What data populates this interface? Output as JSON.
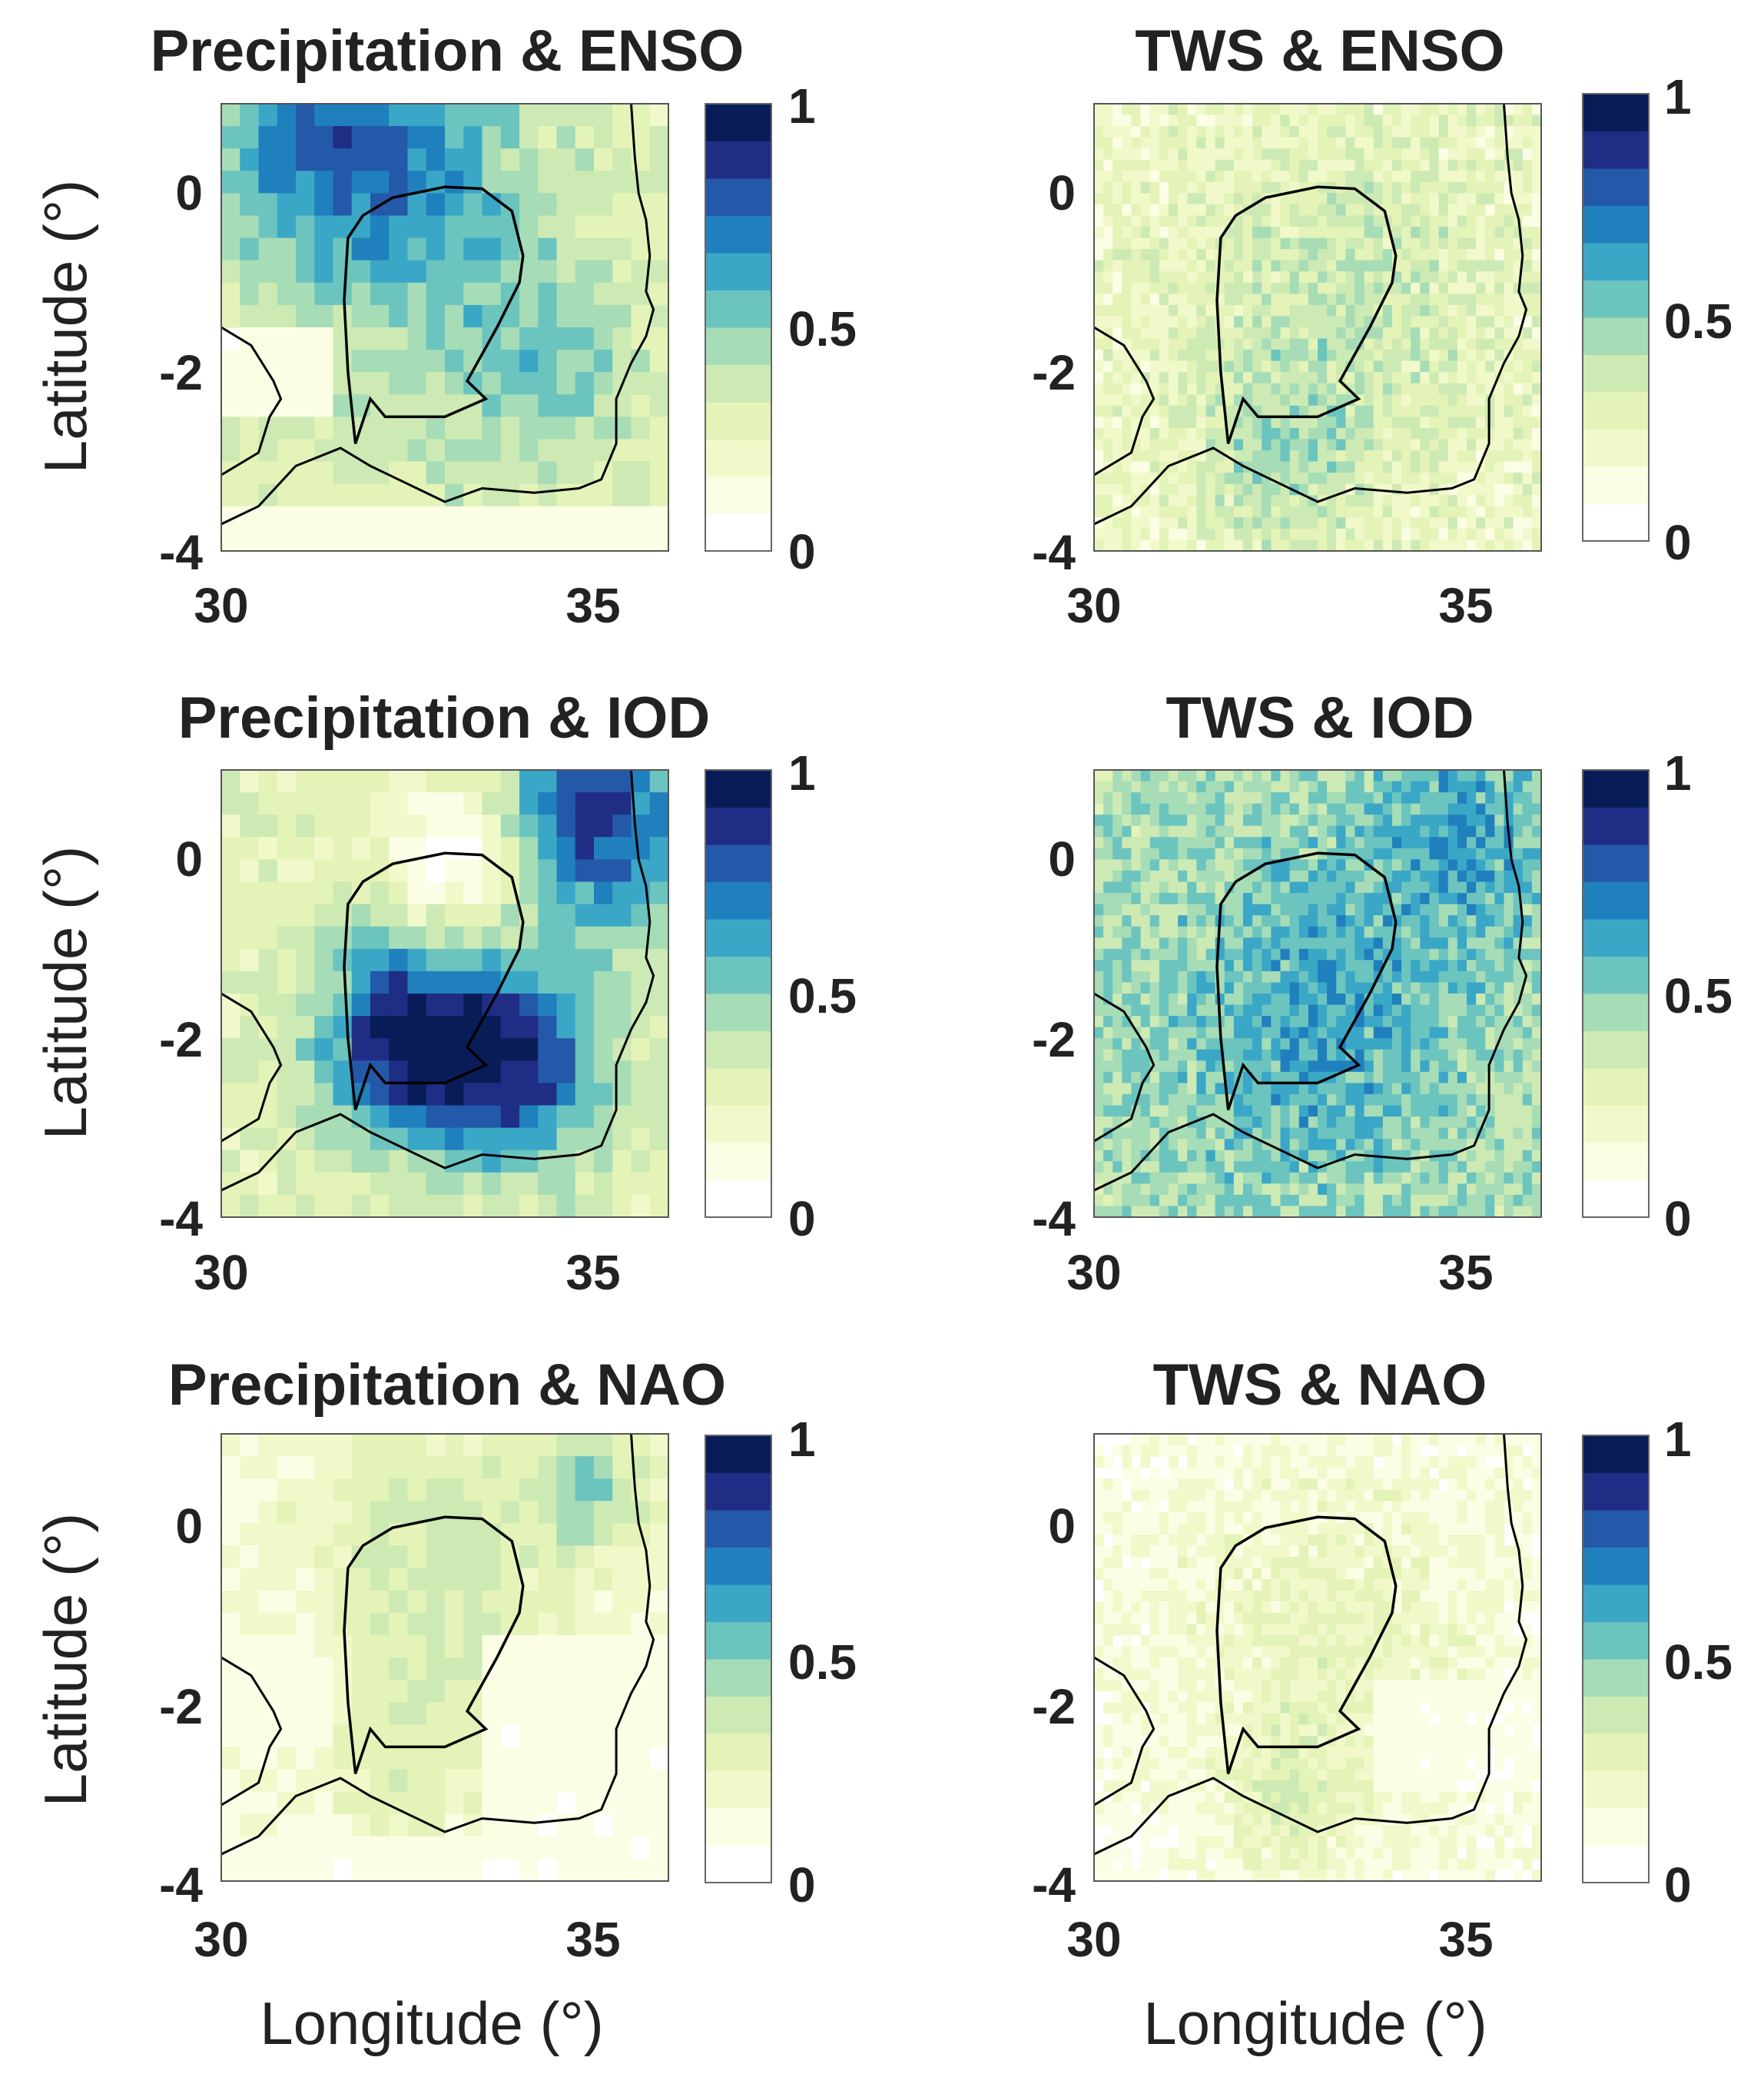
{
  "figure": {
    "ylabel": "Latitude (°)",
    "xlabel": "Longitude (°)"
  },
  "chart_data": [
    {
      "type": "heatmap",
      "title": "Precipitation & ENSO",
      "variable": "Precipitation",
      "index": "ENSO",
      "x_ticks": [
        "30",
        "35"
      ],
      "y_ticks": [
        "0",
        "-2",
        "-4"
      ],
      "xlim": [
        30,
        36
      ],
      "ylim": [
        -4,
        1
      ],
      "colorbar": {
        "range": [
          0,
          1
        ],
        "ticks": [
          "1",
          "0.5",
          "0"
        ],
        "levels": 11
      },
      "grid_step_deg": 0.25,
      "pattern": {
        "base": 0.27,
        "blobs": [
          [
            31.0,
            0.5,
            0.35,
            0.9
          ],
          [
            32.5,
            0.5,
            0.3,
            1.0
          ],
          [
            33.0,
            -1.2,
            0.18,
            1.5
          ],
          [
            34.5,
            -2.0,
            0.15,
            0.8
          ]
        ],
        "zero_regions": [
          "30-31.5,-2.5--1.5",
          "30-36,-4--3.4"
        ],
        "noise": 0.08
      }
    },
    {
      "type": "heatmap",
      "title": "TWS & ENSO",
      "variable": "TWS",
      "index": "ENSO",
      "x_ticks": [
        "30",
        "35"
      ],
      "y_ticks": [
        "0",
        "-2",
        "-4"
      ],
      "xlim": [
        30,
        36
      ],
      "ylim": [
        -4,
        1
      ],
      "colorbar": {
        "range": [
          0,
          1
        ],
        "ticks": [
          "1",
          "0.5",
          "0"
        ],
        "levels": 11
      },
      "grid_step_deg": 0.125,
      "pattern": {
        "base": 0.2,
        "blobs": [
          [
            33.3,
            -1.3,
            0.18,
            1.4
          ],
          [
            32.5,
            -3.0,
            0.2,
            0.7
          ]
        ],
        "zero_regions": [],
        "noise": 0.12
      }
    },
    {
      "type": "heatmap",
      "title": "Precipitation & IOD",
      "variable": "Precipitation",
      "index": "IOD",
      "x_ticks": [
        "30",
        "35"
      ],
      "y_ticks": [
        "0",
        "-2",
        "-4"
      ],
      "xlim": [
        30,
        36
      ],
      "ylim": [
        -4,
        1
      ],
      "colorbar": {
        "range": [
          0,
          1
        ],
        "ticks": [
          "1",
          "0.5",
          "0"
        ],
        "levels": 11
      },
      "grid_step_deg": 0.25,
      "pattern": {
        "base": 0.28,
        "blobs": [
          [
            32.5,
            -2.0,
            0.7,
            0.8
          ],
          [
            34.0,
            -2.3,
            0.6,
            0.8
          ],
          [
            35.0,
            0.5,
            0.6,
            0.9
          ],
          [
            33.2,
            0.0,
            -0.35,
            0.7
          ]
        ],
        "zero_regions": [],
        "noise": 0.08
      }
    },
    {
      "type": "heatmap",
      "title": "TWS & IOD",
      "variable": "TWS",
      "index": "IOD",
      "x_ticks": [
        "30",
        "35"
      ],
      "y_ticks": [
        "0",
        "-2",
        "-4"
      ],
      "xlim": [
        30,
        36
      ],
      "ylim": [
        -4,
        1
      ],
      "colorbar": {
        "range": [
          0,
          1
        ],
        "ticks": [
          "1",
          "0.5",
          "0"
        ],
        "levels": 11
      },
      "grid_step_deg": 0.125,
      "pattern": {
        "base": 0.42,
        "blobs": [
          [
            33.0,
            -1.8,
            0.22,
            1.3
          ],
          [
            35.0,
            0.3,
            0.2,
            0.9
          ]
        ],
        "zero_regions": [],
        "noise": 0.12
      }
    },
    {
      "type": "heatmap",
      "title": "Precipitation & NAO",
      "variable": "Precipitation",
      "index": "NAO",
      "x_ticks": [
        "30",
        "35"
      ],
      "y_ticks": [
        "0",
        "-2",
        "-4"
      ],
      "xlim": [
        30,
        36
      ],
      "ylim": [
        -4,
        1
      ],
      "colorbar": {
        "range": [
          0,
          1
        ],
        "ticks": [
          "1",
          "0.5",
          "0"
        ],
        "levels": 11
      },
      "grid_step_deg": 0.25,
      "pattern": {
        "base": 0.12,
        "blobs": [
          [
            33.0,
            -0.5,
            0.25,
            1.2
          ],
          [
            35.0,
            0.4,
            0.35,
            0.5
          ],
          [
            32.5,
            -2.7,
            0.12,
            0.7
          ]
        ],
        "zero_regions": [
          "30-31.5,-2.5--1.5",
          "30-36,-4--3.5",
          "33.6-36,-3.5--1.2"
        ],
        "noise": 0.07
      }
    },
    {
      "type": "heatmap",
      "title": "TWS & NAO",
      "variable": "TWS",
      "index": "NAO",
      "x_ticks": [
        "30",
        "35"
      ],
      "y_ticks": [
        "0",
        "-2",
        "-4"
      ],
      "xlim": [
        30,
        36
      ],
      "ylim": [
        -4,
        1
      ],
      "colorbar": {
        "range": [
          0,
          1
        ],
        "ticks": [
          "1",
          "0.5",
          "0"
        ],
        "levels": 11
      },
      "grid_step_deg": 0.125,
      "pattern": {
        "base": 0.08,
        "blobs": [
          [
            33.0,
            -1.5,
            0.15,
            1.6
          ],
          [
            32.6,
            -3.1,
            0.15,
            0.5
          ]
        ],
        "zero_regions": [
          "33.8-36,-3--1.8",
          "30-31,-4--3.2"
        ],
        "noise": 0.09
      }
    }
  ],
  "colormap": [
    "#ffffff",
    "#fbfde5",
    "#f1f9ca",
    "#e4f3b8",
    "#cdeab4",
    "#a6dcb6",
    "#6cc4bf",
    "#3ba7c7",
    "#2080bd",
    "#2458a8",
    "#1f2d85",
    "#081d58"
  ],
  "line_color": "#000000"
}
